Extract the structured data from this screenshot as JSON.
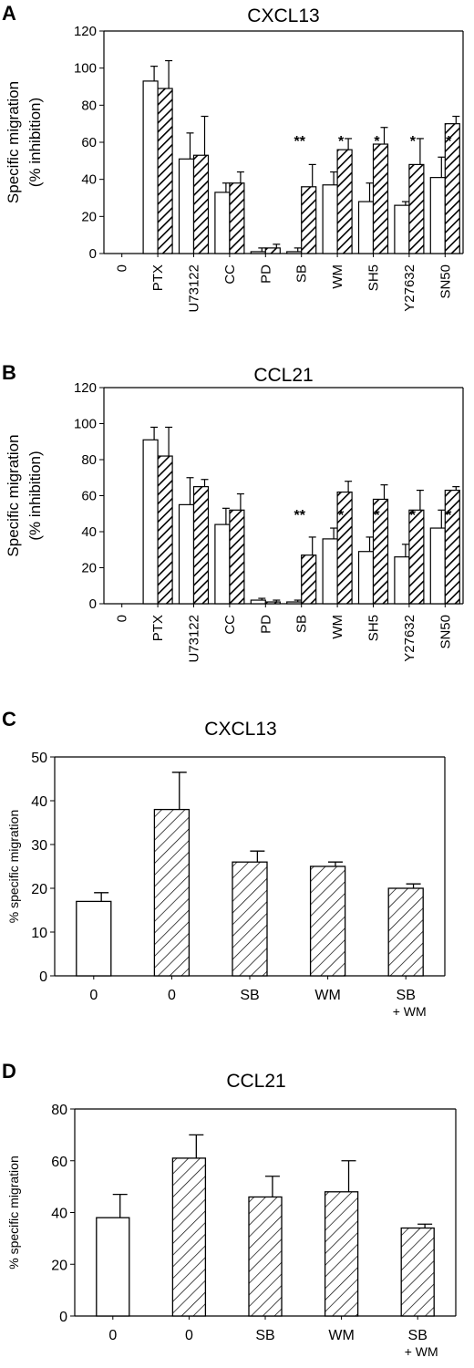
{
  "chart_data": [
    {
      "panel_label": "A",
      "type": "bar",
      "title": "CXCL13",
      "ylabel": [
        "Specific migration",
        "(% inhibition)"
      ],
      "ylim": [
        0,
        120
      ],
      "yticks": [
        0,
        20,
        40,
        60,
        80,
        100,
        120
      ],
      "categories": [
        "0",
        "PTX",
        "U73122",
        "CC",
        "PD",
        "SB",
        "WM",
        "SH5",
        "Y27632",
        "SN50"
      ],
      "series": [
        {
          "style": "open",
          "values": [
            0,
            93,
            51,
            33,
            1,
            1,
            37,
            28,
            26,
            41
          ],
          "errors": [
            0,
            8,
            14,
            5,
            2,
            2,
            7,
            10,
            2,
            11
          ]
        },
        {
          "style": "hatched",
          "values": [
            0,
            89,
            53,
            38,
            3,
            36,
            56,
            59,
            48,
            70
          ],
          "errors": [
            0,
            15,
            21,
            6,
            2,
            12,
            6,
            9,
            14,
            4
          ]
        }
      ],
      "annotations": [
        "",
        "",
        "",
        "",
        "",
        "**",
        "*",
        "*",
        "*",
        "*"
      ]
    },
    {
      "panel_label": "B",
      "type": "bar",
      "title": "CCL21",
      "ylabel": [
        "Specific migration",
        "(% inhibition)"
      ],
      "ylim": [
        0,
        120
      ],
      "yticks": [
        0,
        20,
        40,
        60,
        80,
        100,
        120
      ],
      "categories": [
        "0",
        "PTX",
        "U73122",
        "CC",
        "PD",
        "SB",
        "WM",
        "SH5",
        "Y27632",
        "SN50"
      ],
      "series": [
        {
          "style": "open",
          "values": [
            0,
            91,
            55,
            44,
            2,
            1,
            36,
            29,
            26,
            42
          ],
          "errors": [
            0,
            7,
            15,
            9,
            1,
            1,
            6,
            8,
            7,
            10
          ]
        },
        {
          "style": "hatched",
          "values": [
            0,
            82,
            65,
            52,
            1,
            27,
            62,
            58,
            52,
            63
          ],
          "errors": [
            0,
            16,
            4,
            9,
            1,
            10,
            6,
            8,
            11,
            2
          ]
        }
      ],
      "annotations": [
        "",
        "",
        "",
        "",
        "",
        "**",
        "*",
        "*",
        "*",
        "*"
      ]
    },
    {
      "panel_label": "C",
      "type": "bar",
      "title": "CXCL13",
      "ylabel": [
        "% specific migration"
      ],
      "ylim": [
        0,
        50
      ],
      "yticks": [
        0,
        10,
        20,
        30,
        40,
        50
      ],
      "categories": [
        [
          "0"
        ],
        [
          "0"
        ],
        [
          "SB"
        ],
        [
          "WM"
        ],
        [
          "SB",
          "+ WM"
        ]
      ],
      "values": [
        17,
        38,
        26,
        25,
        20
      ],
      "errors": [
        2,
        8.5,
        2.5,
        1,
        1
      ],
      "styles": [
        "open",
        "hatched",
        "hatched",
        "hatched",
        "hatched"
      ]
    },
    {
      "panel_label": "D",
      "type": "bar",
      "title": "CCL21",
      "ylabel": [
        "% specific migration"
      ],
      "ylim": [
        0,
        80
      ],
      "yticks": [
        0,
        20,
        40,
        60,
        80
      ],
      "categories": [
        [
          "0"
        ],
        [
          "0"
        ],
        [
          "SB"
        ],
        [
          "WM"
        ],
        [
          "SB",
          "+ WM"
        ]
      ],
      "values": [
        38,
        61,
        46,
        48,
        34
      ],
      "errors": [
        9,
        9,
        8,
        12,
        1.5
      ],
      "styles": [
        "open",
        "hatched",
        "hatched",
        "hatched",
        "hatched"
      ]
    }
  ]
}
